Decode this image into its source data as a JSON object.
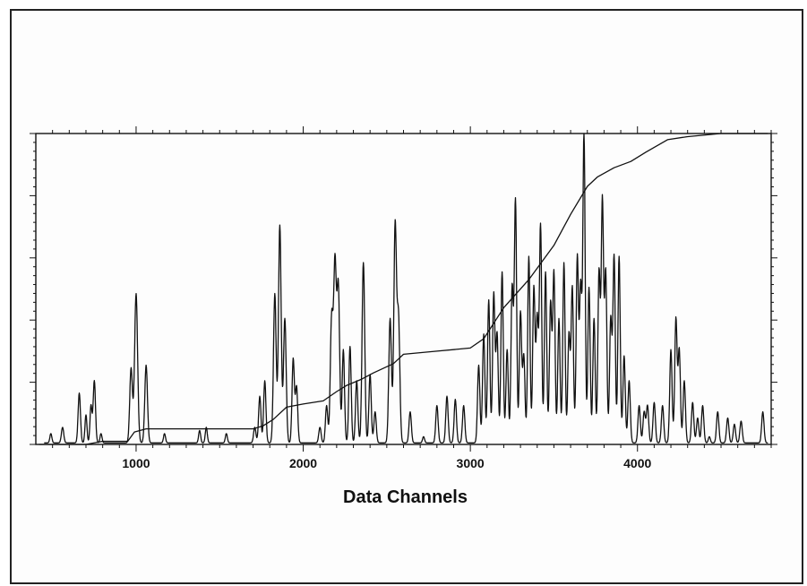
{
  "chart_data": {
    "type": "line",
    "title": "",
    "xlabel": "Data Channels",
    "ylabel": "",
    "xlim": [
      400,
      4800
    ],
    "ylim": [
      0,
      1
    ],
    "xticks": [
      1000,
      2000,
      3000,
      4000
    ],
    "yticks_labeled": false,
    "grid": false,
    "legend": "none",
    "series": [
      {
        "role": "spectrum",
        "baseline": 0.005,
        "peaks": [
          [
            490,
            0.03,
            6
          ],
          [
            560,
            0.05,
            7
          ],
          [
            660,
            0.16,
            7
          ],
          [
            700,
            0.09,
            6
          ],
          [
            730,
            0.12,
            6
          ],
          [
            750,
            0.2,
            7
          ],
          [
            790,
            0.03,
            6
          ],
          [
            970,
            0.24,
            8
          ],
          [
            1000,
            0.48,
            9
          ],
          [
            1060,
            0.25,
            8
          ],
          [
            1170,
            0.03,
            6
          ],
          [
            1380,
            0.04,
            6
          ],
          [
            1420,
            0.05,
            6
          ],
          [
            1540,
            0.03,
            6
          ],
          [
            1710,
            0.05,
            7
          ],
          [
            1740,
            0.15,
            7
          ],
          [
            1770,
            0.2,
            7
          ],
          [
            1830,
            0.48,
            8
          ],
          [
            1860,
            0.7,
            8
          ],
          [
            1890,
            0.4,
            8
          ],
          [
            1940,
            0.27,
            7
          ],
          [
            1960,
            0.18,
            7
          ],
          [
            2100,
            0.05,
            7
          ],
          [
            2140,
            0.12,
            7
          ],
          [
            2170,
            0.4,
            8
          ],
          [
            2190,
            0.57,
            8
          ],
          [
            2210,
            0.5,
            8
          ],
          [
            2240,
            0.3,
            7
          ],
          [
            2280,
            0.31,
            7
          ],
          [
            2320,
            0.2,
            7
          ],
          [
            2360,
            0.58,
            8
          ],
          [
            2400,
            0.22,
            7
          ],
          [
            2430,
            0.1,
            7
          ],
          [
            2520,
            0.4,
            8
          ],
          [
            2550,
            0.7,
            8
          ],
          [
            2570,
            0.4,
            8
          ],
          [
            2640,
            0.1,
            7
          ],
          [
            2720,
            0.02,
            6
          ],
          [
            2800,
            0.12,
            7
          ],
          [
            2860,
            0.15,
            7
          ],
          [
            2910,
            0.14,
            7
          ],
          [
            2960,
            0.12,
            7
          ],
          [
            3050,
            0.25,
            7
          ],
          [
            3080,
            0.35,
            7
          ],
          [
            3110,
            0.46,
            7
          ],
          [
            3140,
            0.48,
            7
          ],
          [
            3160,
            0.35,
            7
          ],
          [
            3190,
            0.55,
            7
          ],
          [
            3220,
            0.3,
            7
          ],
          [
            3250,
            0.5,
            7
          ],
          [
            3270,
            0.78,
            7
          ],
          [
            3300,
            0.42,
            7
          ],
          [
            3320,
            0.28,
            7
          ],
          [
            3350,
            0.6,
            7
          ],
          [
            3380,
            0.5,
            7
          ],
          [
            3400,
            0.4,
            7
          ],
          [
            3420,
            0.7,
            7
          ],
          [
            3450,
            0.55,
            7
          ],
          [
            3480,
            0.45,
            7
          ],
          [
            3500,
            0.55,
            7
          ],
          [
            3530,
            0.4,
            7
          ],
          [
            3560,
            0.58,
            7
          ],
          [
            3590,
            0.35,
            7
          ],
          [
            3610,
            0.5,
            7
          ],
          [
            3640,
            0.6,
            7
          ],
          [
            3660,
            0.5,
            7
          ],
          [
            3680,
            0.99,
            7
          ],
          [
            3710,
            0.5,
            7
          ],
          [
            3740,
            0.4,
            7
          ],
          [
            3770,
            0.55,
            7
          ],
          [
            3790,
            0.78,
            7
          ],
          [
            3810,
            0.55,
            7
          ],
          [
            3840,
            0.4,
            7
          ],
          [
            3860,
            0.6,
            7
          ],
          [
            3890,
            0.6,
            7
          ],
          [
            3920,
            0.28,
            7
          ],
          [
            3950,
            0.2,
            7
          ],
          [
            4010,
            0.12,
            7
          ],
          [
            4040,
            0.1,
            7
          ],
          [
            4060,
            0.12,
            7
          ],
          [
            4100,
            0.13,
            7
          ],
          [
            4150,
            0.12,
            7
          ],
          [
            4200,
            0.3,
            7
          ],
          [
            4230,
            0.4,
            7
          ],
          [
            4250,
            0.3,
            7
          ],
          [
            4280,
            0.2,
            7
          ],
          [
            4330,
            0.13,
            7
          ],
          [
            4360,
            0.08,
            7
          ],
          [
            4390,
            0.12,
            7
          ],
          [
            4430,
            0.02,
            6
          ],
          [
            4480,
            0.1,
            7
          ],
          [
            4540,
            0.08,
            7
          ],
          [
            4580,
            0.06,
            7
          ],
          [
            4620,
            0.07,
            7
          ],
          [
            4750,
            0.1,
            7
          ]
        ]
      },
      {
        "role": "cumulative",
        "points": [
          [
            420,
            0.0
          ],
          [
            700,
            0.0
          ],
          [
            800,
            0.01
          ],
          [
            950,
            0.01
          ],
          [
            990,
            0.04
          ],
          [
            1060,
            0.05
          ],
          [
            1200,
            0.05
          ],
          [
            1700,
            0.05
          ],
          [
            1760,
            0.06
          ],
          [
            1820,
            0.08
          ],
          [
            1900,
            0.12
          ],
          [
            2000,
            0.13
          ],
          [
            2120,
            0.14
          ],
          [
            2200,
            0.17
          ],
          [
            2260,
            0.19
          ],
          [
            2350,
            0.21
          ],
          [
            2420,
            0.23
          ],
          [
            2540,
            0.26
          ],
          [
            2600,
            0.29
          ],
          [
            2800,
            0.3
          ],
          [
            3000,
            0.31
          ],
          [
            3080,
            0.34
          ],
          [
            3200,
            0.44
          ],
          [
            3350,
            0.53
          ],
          [
            3500,
            0.64
          ],
          [
            3600,
            0.74
          ],
          [
            3700,
            0.83
          ],
          [
            3760,
            0.86
          ],
          [
            3860,
            0.89
          ],
          [
            3960,
            0.91
          ],
          [
            4050,
            0.94
          ],
          [
            4180,
            0.98
          ],
          [
            4300,
            0.99
          ],
          [
            4500,
            1.0
          ],
          [
            4780,
            1.0
          ]
        ]
      }
    ]
  }
}
